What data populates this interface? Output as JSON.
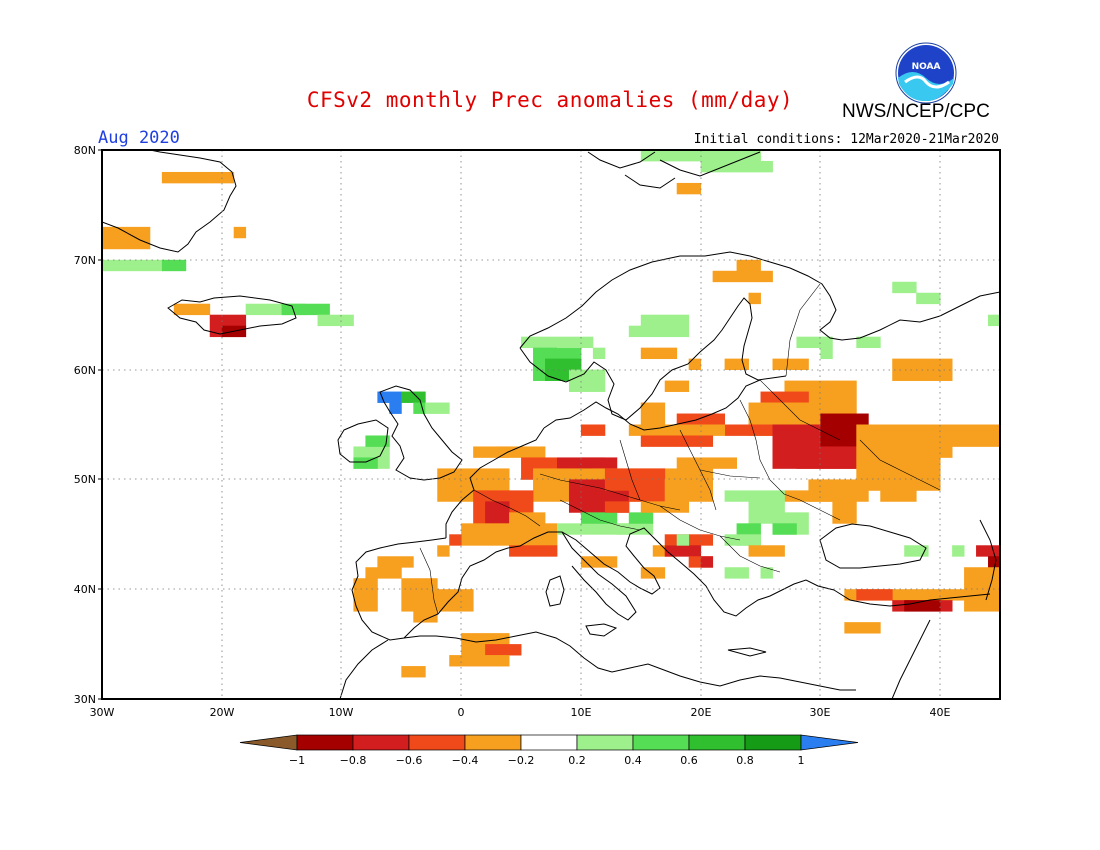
{
  "header": {
    "title": "CFSv2 monthly Prec anomalies (mm/day)",
    "agency": "NWS/NCEP/CPC",
    "logo_text": "NOAA",
    "month": "Aug 2020",
    "initial_conditions": "Initial conditions: 12Mar2020-21Mar2020"
  },
  "map": {
    "lon_range": [
      -30,
      45
    ],
    "lat_range": [
      30,
      80
    ],
    "lat_labels": [
      "30N",
      "40N",
      "50N",
      "60N",
      "70N",
      "80N"
    ],
    "lon_labels": [
      "30W",
      "20W",
      "10W",
      "0",
      "10E",
      "20E",
      "30E",
      "40E"
    ],
    "grid": "dotted"
  },
  "legend": {
    "labels": [
      "-1",
      "-0.8",
      "-0.6",
      "-0.4",
      "-0.2",
      "0.2",
      "0.4",
      "0.6",
      "0.8",
      "1"
    ],
    "colors": [
      "#8b5a2b",
      "#a50000",
      "#d21e1e",
      "#f04a1a",
      "#f7a020",
      "#ffffff",
      "#9ef08c",
      "#55dd55",
      "#2fbf2f",
      "#159b15",
      "#2a7ef0"
    ]
  },
  "colors": {
    "dry_light": "#f7a020",
    "dry_mid": "#f04a1a",
    "dry_strong": "#d21e1e",
    "dry_extreme": "#a50000",
    "wet_light": "#9ef08c",
    "wet_mid": "#55dd55",
    "wet_strong": "#2fbf2f",
    "wet_extreme": "#2a7ef0"
  }
}
